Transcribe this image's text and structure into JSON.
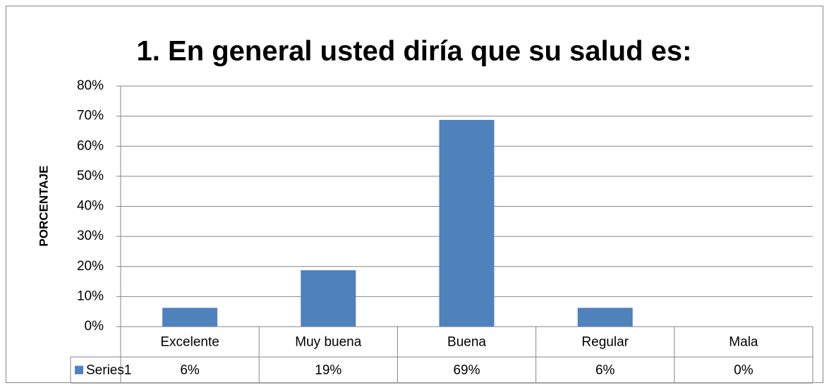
{
  "chart_data": {
    "type": "bar",
    "title": "1. En general usted diría que su salud es:",
    "y_label": "PORCENTAJE",
    "categories": [
      "Excelente",
      "Muy buena",
      "Buena",
      "Regular",
      "Mala"
    ],
    "series": [
      {
        "name": "Series1",
        "color": "#4f81bd",
        "values": [
          6.25,
          18.75,
          68.75,
          6.25,
          0
        ],
        "value_labels": [
          "6%",
          "19%",
          "69%",
          "6%",
          "0%"
        ]
      }
    ],
    "ylim": [
      0,
      80
    ],
    "yticks": [
      {
        "value": 0,
        "label": "0%"
      },
      {
        "value": 10,
        "label": "10%"
      },
      {
        "value": 20,
        "label": "20%"
      },
      {
        "value": 30,
        "label": "30%"
      },
      {
        "value": 40,
        "label": "40%"
      },
      {
        "value": 50,
        "label": "50%"
      },
      {
        "value": 60,
        "label": "60%"
      },
      {
        "value": 70,
        "label": "70%"
      },
      {
        "value": 80,
        "label": "80%"
      }
    ],
    "grid": true
  }
}
